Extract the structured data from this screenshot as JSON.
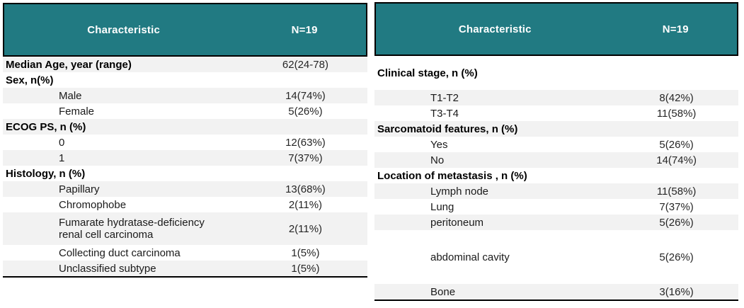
{
  "colors": {
    "header_bg": "#217a82",
    "header_text": "#ffffff",
    "shaded_row_bg": "#f2f2f2",
    "border": "#000000"
  },
  "tables": [
    {
      "name": "left-characteristics-table",
      "header": {
        "characteristic": "Characteristic",
        "n": "N=19"
      },
      "rows": [
        {
          "label": "Median Age, year (range)",
          "value": "62(24-78)"
        },
        {
          "label": "Sex, n(%)",
          "value": ""
        },
        {
          "label": "Male",
          "value": "14(74%)"
        },
        {
          "label": "Female",
          "value": "5(26%)"
        },
        {
          "label": "ECOG PS, n (%)",
          "value": ""
        },
        {
          "label": "0",
          "value": "12(63%)"
        },
        {
          "label": "1",
          "value": "7(37%)"
        },
        {
          "label": "Histology, n (%)",
          "value": ""
        },
        {
          "label": "Papillary",
          "value": "13(68%)"
        },
        {
          "label": "Chromophobe",
          "value": "2(11%)"
        },
        {
          "label": "Fumarate hydratase-deficiency\nrenal cell carcinoma",
          "value": "2(11%)"
        },
        {
          "label": "Collecting duct carcinoma",
          "value": "1(5%)"
        },
        {
          "label": "Unclassified subtype",
          "value": "1(5%)"
        }
      ]
    },
    {
      "name": "right-characteristics-table",
      "header": {
        "characteristic": "Characteristic",
        "n": "N=19"
      },
      "rows": [
        {
          "label": "Clinical stage, n (%)",
          "value": ""
        },
        {
          "label": "T1-T2",
          "value": "8(42%)"
        },
        {
          "label": "T3-T4",
          "value": "11(58%)"
        },
        {
          "label": "Sarcomatoid features, n (%)",
          "value": ""
        },
        {
          "label": "Yes",
          "value": "5(26%)"
        },
        {
          "label": "No",
          "value": "14(74%)"
        },
        {
          "label": "Location of metastasis , n (%)",
          "value": ""
        },
        {
          "label": "Lymph node",
          "value": "11(58%)"
        },
        {
          "label": "Lung",
          "value": "7(37%)"
        },
        {
          "label": "peritoneum",
          "value": "5(26%)"
        },
        {
          "label": "abdominal cavity",
          "value": "5(26%)"
        },
        {
          "label": "Bone",
          "value": "3(16%)"
        }
      ]
    }
  ]
}
